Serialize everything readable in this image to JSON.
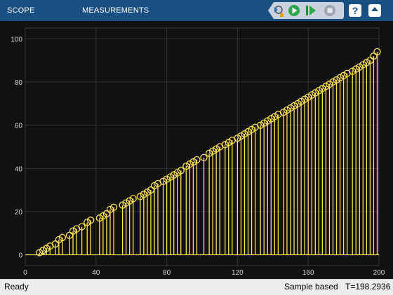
{
  "toolbar": {
    "tabs": [
      {
        "label": "SCOPE"
      },
      {
        "label": "MEASUREMENTS"
      }
    ],
    "buttons": [
      "step-back-icon",
      "run-icon",
      "step-forward-icon",
      "stop-icon",
      "help-icon",
      "expand-icon"
    ],
    "background_color": "#1a4f82"
  },
  "chart_data": {
    "type": "stem",
    "title": "",
    "xlabel": "",
    "ylabel": "",
    "xlim": [
      0,
      200
    ],
    "ylim": [
      -5,
      105
    ],
    "xticks": [
      "0",
      "40",
      "80",
      "120",
      "160",
      "200"
    ],
    "yticks": [
      "0",
      "20",
      "40",
      "60",
      "80",
      "100"
    ],
    "grid": true,
    "background": "#111111",
    "line_color": "#ffe34d",
    "marker": "open-circle",
    "series": [
      {
        "x": [
          8,
          10,
          12,
          14,
          17,
          19,
          21,
          25,
          27,
          29,
          32,
          35,
          37,
          42,
          44,
          46,
          48,
          50,
          55,
          57,
          59,
          61,
          65,
          67,
          69,
          71,
          73,
          75,
          78,
          80,
          82,
          84,
          86,
          88,
          91,
          93,
          95,
          97,
          101,
          104,
          106,
          108,
          110,
          113,
          115,
          117,
          120,
          122,
          124,
          126,
          128,
          130,
          133,
          135,
          137,
          139,
          141,
          143,
          146,
          148,
          150,
          152,
          154,
          156,
          158,
          160,
          162,
          164,
          166,
          168,
          170,
          172,
          174,
          176,
          178,
          180,
          182,
          185,
          187,
          189,
          191,
          193,
          195,
          197,
          199
        ],
        "y": [
          1,
          2,
          3,
          4,
          5,
          7,
          8,
          9,
          11,
          12,
          13,
          15,
          16,
          17,
          18,
          19,
          21,
          22,
          23,
          24,
          25,
          26,
          27,
          28,
          29,
          30,
          32,
          33,
          34,
          35,
          36,
          37,
          38,
          39,
          41,
          42,
          43,
          44,
          45,
          47,
          48,
          49,
          50,
          51,
          52,
          53,
          54,
          55,
          56,
          57,
          58,
          59,
          60,
          61,
          62,
          63,
          64,
          65,
          66,
          67,
          68,
          69,
          70,
          71,
          72,
          73,
          74,
          75,
          76,
          77,
          78,
          79,
          80,
          81,
          82,
          83,
          84,
          85,
          86,
          87,
          88,
          89,
          90,
          92,
          94
        ]
      }
    ]
  },
  "status": {
    "ready": "Ready",
    "mode": "Sample based",
    "time": "T=198.2936"
  }
}
